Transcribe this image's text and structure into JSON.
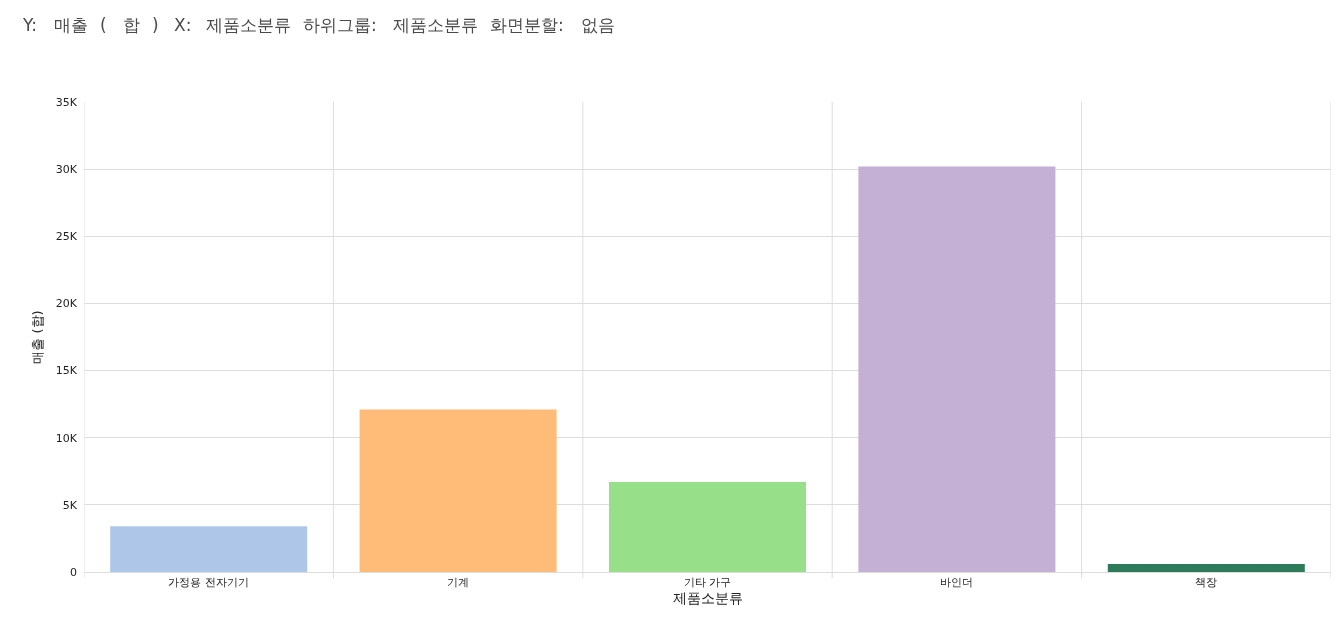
{
  "chart_data": {
    "type": "bar",
    "xlabel": "제품소분류",
    "ylabel": "매출 (합)",
    "categories": [
      "가정용 전자기기",
      "기계",
      "기타 가구",
      "바인더",
      "책장"
    ],
    "values": [
      3400,
      12100,
      6700,
      30200,
      600
    ],
    "colors": [
      "#aec7e8",
      "#ffbb78",
      "#98df8a",
      "#c5b0d5",
      "#2e7b5c"
    ],
    "ylim": [
      0,
      35000
    ],
    "yticks": [
      0,
      {
        "value": 5000,
        "label": "5K"
      },
      {
        "value": 10000,
        "label": "10K"
      },
      {
        "value": 15000,
        "label": "15K"
      },
      {
        "value": 20000,
        "label": "20K"
      },
      {
        "value": 25000,
        "label": "25K"
      },
      {
        "value": 30000,
        "label": "30K"
      },
      {
        "value": 35000,
        "label": "35K"
      }
    ],
    "grid": true,
    "annotations": [
      "Y:",
      "매출",
      "(",
      "합",
      ")",
      "X:",
      "제품소분류",
      "하위그룹:",
      "제품소분류",
      "화면분할:",
      "없음"
    ]
  }
}
